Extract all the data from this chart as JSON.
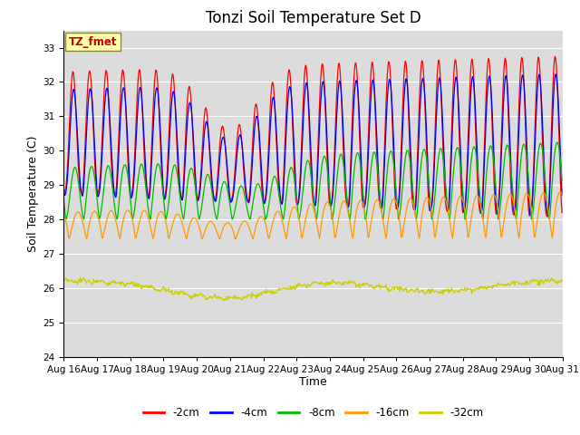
{
  "title": "Tonzi Soil Temperature Set D",
  "xlabel": "Time",
  "ylabel": "Soil Temperature (C)",
  "ylim": [
    24.0,
    33.5
  ],
  "yticks": [
    24.0,
    25.0,
    26.0,
    27.0,
    28.0,
    29.0,
    30.0,
    31.0,
    32.0,
    33.0
  ],
  "series_colors": [
    "#ff0000",
    "#0000ff",
    "#00bb00",
    "#ff9900",
    "#cccc00"
  ],
  "series_labels": [
    "-2cm",
    "-4cm",
    "-8cm",
    "-16cm",
    "-32cm"
  ],
  "annotation_text": "TZ_fmet",
  "annotation_color": "#cc0000",
  "annotation_bg": "#ffffaa",
  "plot_bg": "#dcdcdc",
  "n_days": 15,
  "start_day": 16,
  "ppd": 48,
  "title_fontsize": 12,
  "axis_label_fontsize": 9,
  "tick_fontsize": 7.5
}
